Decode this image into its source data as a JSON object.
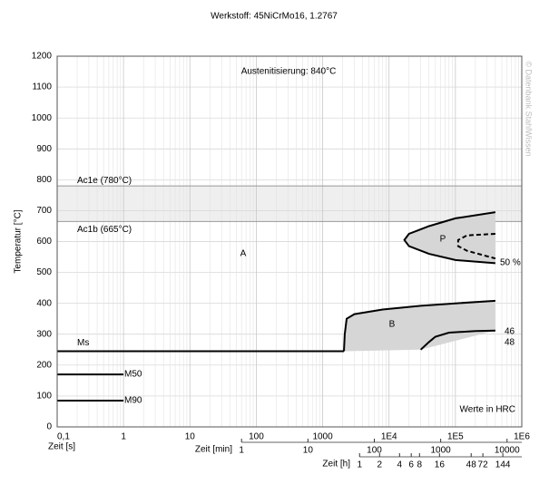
{
  "chart_data": {
    "type": "line",
    "title": "Werkstoff: 45NiCrMo16, 1.2767",
    "subtitle": "Austenitisierung: 840°C",
    "watermark": "© Datenbank StahlWissen",
    "note": "Werte in HRC",
    "y_label": "Temperatur [°C]",
    "x_label": "Zeit [s]",
    "x_log": true,
    "grid": true,
    "xlim": [
      0.1,
      1000000
    ],
    "ylim": [
      0,
      1200
    ],
    "yticks": [
      0,
      100,
      200,
      300,
      400,
      500,
      600,
      700,
      800,
      900,
      1000,
      1100,
      1200
    ],
    "xticks": [
      {
        "value": 0.1,
        "label": "0,1"
      },
      1,
      10,
      100,
      1000,
      {
        "value": 10000,
        "label": "1E4"
      },
      {
        "value": 100000,
        "label": "1E5"
      },
      {
        "value": 1000000,
        "label": "1E6"
      }
    ],
    "x2_label": "Zeit [min]",
    "x2ticks": [
      {
        "value": 60,
        "label": "1"
      },
      {
        "value": 600,
        "label": "10"
      },
      {
        "value": 6000,
        "label": "100"
      },
      {
        "value": 60000,
        "label": "1000"
      },
      {
        "value": 600000,
        "label": "10000"
      }
    ],
    "x3_label": "Zeit [h]",
    "x3ticks": [
      {
        "value": 3600,
        "label": "1"
      },
      {
        "value": 7200,
        "label": "2"
      },
      {
        "value": 14400,
        "label": "4"
      },
      {
        "value": 21600,
        "label": "6"
      },
      {
        "value": 28800,
        "label": "8"
      },
      {
        "value": 57600,
        "label": "16"
      },
      {
        "value": 172800,
        "label": "48"
      },
      {
        "value": 259200,
        "label": "72"
      },
      {
        "value": 518400,
        "label": "144"
      }
    ],
    "band_color": "#efefef",
    "hlines": [
      {
        "label": "Ac1e (780°C)",
        "value": 780
      },
      {
        "label": "Ac1b (665°C)",
        "value": 665
      }
    ],
    "regions": [
      "A",
      "B",
      "P"
    ],
    "hardness": [
      "46",
      "48"
    ],
    "series": [
      {
        "name": "Ms",
        "color": "#000000",
        "x": [
          0.1,
          2100
        ],
        "values": [
          245,
          245
        ]
      },
      {
        "name": "M50",
        "color": "#000000",
        "x": [
          0.1,
          1
        ],
        "values": [
          170,
          170
        ]
      },
      {
        "name": "M90",
        "color": "#000000",
        "x": [
          0.1,
          1
        ],
        "values": [
          85,
          85
        ]
      },
      {
        "color": "#000000",
        "fill": "#d6d6d6",
        "x": [
          2100,
          2100,
          2150,
          2300,
          3000,
          8000,
          30000,
          100000,
          400000
        ],
        "values": [
          245,
          250,
          300,
          350,
          365,
          380,
          392,
          400,
          408
        ]
      },
      {
        "color": "#000000",
        "fill": "#d6d6d6",
        "x": [
          30000,
          40000,
          50000,
          80000,
          200000,
          400000
        ],
        "values": [
          250,
          275,
          292,
          305,
          310,
          312
        ]
      },
      {
        "color": "#000000",
        "fill": "#d6d6d6",
        "x": [
          400000,
          100000,
          40000,
          20000,
          17000,
          20000,
          40000,
          100000,
          400000
        ],
        "values": [
          695,
          675,
          650,
          625,
          605,
          585,
          560,
          540,
          530
        ]
      },
      {
        "name": "50 %",
        "color": "#000000",
        "dashed": true,
        "x": [
          400000,
          150000,
          110000,
          110000,
          150000,
          400000
        ],
        "values": [
          625,
          620,
          605,
          585,
          570,
          545
        ]
      }
    ]
  }
}
